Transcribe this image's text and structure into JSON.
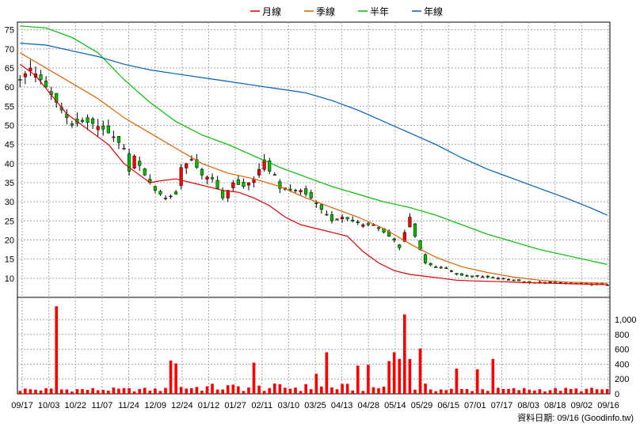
{
  "chart_data": {
    "type": "candlestick",
    "legend": {
      "placement": "top-center",
      "items": [
        {
          "label": "月線",
          "color": "#e00000"
        },
        {
          "label": "季線",
          "color": "#e06000"
        },
        {
          "label": "半年",
          "color": "#00c000"
        },
        {
          "label": "年線",
          "color": "#0060c0"
        }
      ]
    },
    "price_axis": {
      "min": 5,
      "max": 77,
      "ticks": [
        10,
        15,
        20,
        25,
        30,
        35,
        40,
        45,
        50,
        55,
        60,
        65,
        70,
        75
      ],
      "side": "left"
    },
    "volume_axis": {
      "min": 0,
      "max": 1300,
      "ticks": [
        0,
        200,
        400,
        600,
        800,
        "1,000"
      ],
      "tick_values": [
        0,
        200,
        400,
        600,
        800,
        1000
      ],
      "side": "right"
    },
    "x_ticks": [
      "09/17",
      "10/03",
      "10/22",
      "11/07",
      "11/24",
      "12/09",
      "12/24",
      "01/12",
      "01/27",
      "02/11",
      "03/10",
      "03/25",
      "04/13",
      "04/28",
      "05/14",
      "05/29",
      "06/15",
      "07/01",
      "07/17",
      "08/03",
      "08/18",
      "09/02",
      "09/16"
    ],
    "grid": true,
    "price_series": [
      {
        "name": "月線",
        "color": "#e00000",
        "points": [
          [
            0,
            66
          ],
          [
            3,
            63
          ],
          [
            6,
            58
          ],
          [
            9,
            53
          ],
          [
            11,
            51
          ],
          [
            14,
            48
          ],
          [
            17,
            45
          ],
          [
            20,
            40
          ],
          [
            23,
            37
          ],
          [
            25,
            35
          ],
          [
            27,
            35.5
          ],
          [
            30,
            36
          ],
          [
            33,
            35
          ],
          [
            36,
            34
          ],
          [
            39,
            33
          ],
          [
            42,
            32.5
          ],
          [
            45,
            31
          ],
          [
            48,
            29
          ],
          [
            51,
            26
          ],
          [
            54,
            24
          ],
          [
            57,
            23
          ],
          [
            60,
            22
          ],
          [
            63,
            21
          ],
          [
            66,
            17
          ],
          [
            69,
            14
          ],
          [
            72,
            12
          ],
          [
            75,
            11
          ],
          [
            78,
            10.5
          ],
          [
            81,
            10
          ],
          [
            84,
            9.5
          ],
          [
            87,
            9.3
          ],
          [
            90,
            9.2
          ],
          [
            93,
            9.1
          ],
          [
            96,
            8.9
          ],
          [
            99,
            8.8
          ],
          [
            102,
            8.7
          ],
          [
            105,
            8.6
          ],
          [
            108,
            8.5
          ],
          [
            111,
            8.4
          ],
          [
            113,
            8.3
          ]
        ]
      },
      {
        "name": "季線",
        "color": "#e06000",
        "points": [
          [
            0,
            69
          ],
          [
            5,
            65
          ],
          [
            10,
            61
          ],
          [
            15,
            57
          ],
          [
            20,
            52
          ],
          [
            25,
            48
          ],
          [
            30,
            44
          ],
          [
            35,
            40
          ],
          [
            40,
            37.5
          ],
          [
            45,
            36
          ],
          [
            50,
            34
          ],
          [
            55,
            31
          ],
          [
            60,
            28.5
          ],
          [
            65,
            26
          ],
          [
            70,
            23
          ],
          [
            75,
            19
          ],
          [
            80,
            15.5
          ],
          [
            85,
            13
          ],
          [
            90,
            11.5
          ],
          [
            95,
            10.3
          ],
          [
            100,
            9.5
          ],
          [
            105,
            9
          ],
          [
            110,
            8.8
          ],
          [
            113,
            8.7
          ]
        ]
      },
      {
        "name": "半年",
        "color": "#00c000",
        "points": [
          [
            0,
            76
          ],
          [
            5,
            75.5
          ],
          [
            10,
            73
          ],
          [
            15,
            69
          ],
          [
            20,
            62
          ],
          [
            25,
            56
          ],
          [
            30,
            51
          ],
          [
            35,
            47.5
          ],
          [
            40,
            45
          ],
          [
            45,
            42
          ],
          [
            50,
            39
          ],
          [
            55,
            36.5
          ],
          [
            60,
            34
          ],
          [
            65,
            32
          ],
          [
            70,
            30
          ],
          [
            75,
            28.5
          ],
          [
            80,
            26.5
          ],
          [
            85,
            24
          ],
          [
            90,
            21.5
          ],
          [
            95,
            19.5
          ],
          [
            100,
            17.5
          ],
          [
            105,
            16
          ],
          [
            110,
            14.5
          ],
          [
            113,
            13.6
          ]
        ]
      },
      {
        "name": "年線",
        "color": "#0060c0",
        "points": [
          [
            0,
            71.5
          ],
          [
            5,
            71
          ],
          [
            10,
            69.5
          ],
          [
            15,
            68
          ],
          [
            20,
            66
          ],
          [
            25,
            64.5
          ],
          [
            30,
            63.5
          ],
          [
            35,
            62.5
          ],
          [
            40,
            61.5
          ],
          [
            45,
            60.5
          ],
          [
            50,
            59.5
          ],
          [
            55,
            58.5
          ],
          [
            60,
            56.5
          ],
          [
            65,
            54
          ],
          [
            70,
            51
          ],
          [
            75,
            48
          ],
          [
            80,
            45
          ],
          [
            85,
            41.5
          ],
          [
            90,
            38.5
          ],
          [
            95,
            36
          ],
          [
            100,
            33.5
          ],
          [
            105,
            31
          ],
          [
            110,
            28.3
          ],
          [
            113,
            26.5
          ]
        ]
      }
    ],
    "close_path": [
      [
        0,
        62
      ],
      [
        2,
        65
      ],
      [
        4,
        62
      ],
      [
        6,
        58
      ],
      [
        8,
        54
      ],
      [
        10,
        50
      ],
      [
        12,
        51
      ],
      [
        14,
        50.5
      ],
      [
        16,
        49
      ],
      [
        18,
        47
      ],
      [
        20,
        44
      ],
      [
        21,
        38
      ],
      [
        22,
        42
      ],
      [
        24,
        37
      ],
      [
        26,
        33
      ],
      [
        28,
        31
      ],
      [
        30,
        32
      ],
      [
        31,
        39
      ],
      [
        33,
        41
      ],
      [
        35,
        37
      ],
      [
        37,
        36
      ],
      [
        39,
        31
      ],
      [
        41,
        35
      ],
      [
        43,
        34
      ],
      [
        45,
        36
      ],
      [
        47,
        41
      ],
      [
        48,
        38
      ],
      [
        49,
        37
      ],
      [
        50,
        33.5
      ],
      [
        52,
        33
      ],
      [
        54,
        33
      ],
      [
        56,
        31
      ],
      [
        58,
        28
      ],
      [
        60,
        25
      ],
      [
        62,
        26
      ],
      [
        64,
        25
      ],
      [
        66,
        24
      ],
      [
        68,
        24
      ],
      [
        70,
        22
      ],
      [
        72,
        20
      ],
      [
        73,
        18
      ],
      [
        75,
        26
      ],
      [
        76,
        21
      ],
      [
        78,
        14
      ],
      [
        80,
        13
      ],
      [
        82,
        12.5
      ],
      [
        84,
        11
      ],
      [
        86,
        10.5
      ],
      [
        88,
        10.5
      ],
      [
        90,
        10.3
      ],
      [
        92,
        10
      ],
      [
        94,
        9.7
      ],
      [
        96,
        9.3
      ],
      [
        98,
        8.8
      ],
      [
        100,
        8.9
      ],
      [
        102,
        9
      ],
      [
        104,
        8.8
      ],
      [
        106,
        8.6
      ],
      [
        108,
        8.6
      ],
      [
        110,
        8.5
      ],
      [
        112,
        8.4
      ],
      [
        113,
        8.3
      ]
    ],
    "volume_spikes": [
      [
        7,
        1180
      ],
      [
        29,
        450
      ],
      [
        30,
        410
      ],
      [
        45,
        420
      ],
      [
        57,
        270
      ],
      [
        59,
        560
      ],
      [
        65,
        380
      ],
      [
        67,
        390
      ],
      [
        71,
        440
      ],
      [
        72,
        560
      ],
      [
        73,
        470
      ],
      [
        74,
        1070
      ],
      [
        75,
        470
      ],
      [
        77,
        610
      ],
      [
        84,
        340
      ],
      [
        88,
        330
      ],
      [
        91,
        470
      ]
    ],
    "footer_note": "資料日期: 09/16  (Goodinfo.tw)"
  }
}
